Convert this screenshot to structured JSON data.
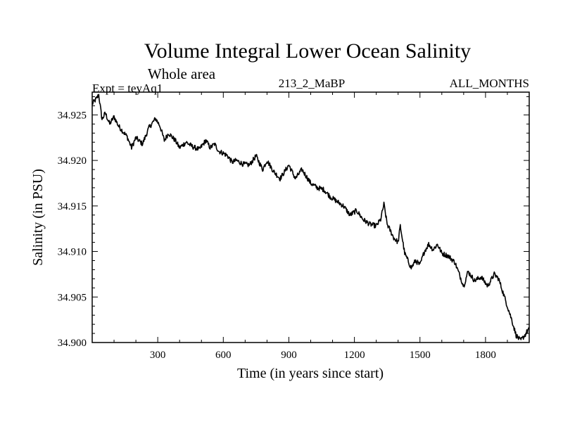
{
  "chart_data": {
    "type": "line",
    "title": "Volume Integral Lower Ocean Salinity",
    "subtitle": "Whole area",
    "annotations": {
      "left": "Expt = teyAq1",
      "center": "213_2_MaBP",
      "right": "ALL_MONTHS"
    },
    "xlabel": "Time (in years since start)",
    "ylabel": "Salinity (in PSU)",
    "xlim": [
      0,
      2000
    ],
    "ylim": [
      34.9,
      34.9275
    ],
    "xticks": [
      300,
      600,
      900,
      1200,
      1500,
      1800
    ],
    "xtick_labels": [
      "300",
      "600",
      "900",
      "1200",
      "1500",
      "1800"
    ],
    "yticks": [
      34.9,
      34.905,
      34.91,
      34.915,
      34.92,
      34.925
    ],
    "ytick_labels": [
      "34.900",
      "34.905",
      "34.910",
      "34.915",
      "34.920",
      "34.925"
    ],
    "grid": false,
    "series": [
      {
        "name": "Salinity",
        "x": [
          0,
          20,
          30,
          45,
          60,
          80,
          100,
          120,
          140,
          160,
          180,
          200,
          230,
          260,
          290,
          310,
          330,
          350,
          380,
          400,
          430,
          460,
          490,
          520,
          540,
          560,
          580,
          600,
          620,
          640,
          660,
          690,
          720,
          750,
          780,
          800,
          830,
          860,
          900,
          930,
          960,
          1000,
          1030,
          1060,
          1090,
          1120,
          1150,
          1180,
          1210,
          1240,
          1270,
          1300,
          1320,
          1335,
          1350,
          1380,
          1400,
          1410,
          1430,
          1460,
          1480,
          1500,
          1520,
          1540,
          1560,
          1580,
          1600,
          1630,
          1660,
          1680,
          1700,
          1720,
          1750,
          1780,
          1810,
          1840,
          1860,
          1880,
          1900,
          1920,
          1940,
          1960,
          1980,
          2000
        ],
        "values": [
          34.9262,
          34.9268,
          34.9272,
          34.9245,
          34.9252,
          34.924,
          34.9248,
          34.9238,
          34.9232,
          34.9226,
          34.9214,
          34.9225,
          34.9218,
          34.9236,
          34.9246,
          34.9238,
          34.9222,
          34.923,
          34.9222,
          34.9214,
          34.922,
          34.9215,
          34.9212,
          34.9222,
          34.9214,
          34.9218,
          34.921,
          34.9208,
          34.9205,
          34.9198,
          34.92,
          34.9196,
          34.9195,
          34.9205,
          34.919,
          34.92,
          34.9188,
          34.918,
          34.9195,
          34.918,
          34.919,
          34.9175,
          34.917,
          34.9168,
          34.916,
          34.9155,
          34.915,
          34.914,
          34.9145,
          34.9135,
          34.913,
          34.9128,
          34.9135,
          34.9152,
          34.913,
          34.9115,
          34.911,
          34.9128,
          34.9098,
          34.9082,
          34.909,
          34.9085,
          34.91,
          34.9108,
          34.9102,
          34.9108,
          34.9098,
          34.9095,
          34.9088,
          34.9075,
          34.9062,
          34.9078,
          34.9068,
          34.9072,
          34.9062,
          34.9075,
          34.907,
          34.9055,
          34.904,
          34.9025,
          34.9008,
          34.9002,
          34.9008,
          34.9016
        ]
      }
    ]
  }
}
